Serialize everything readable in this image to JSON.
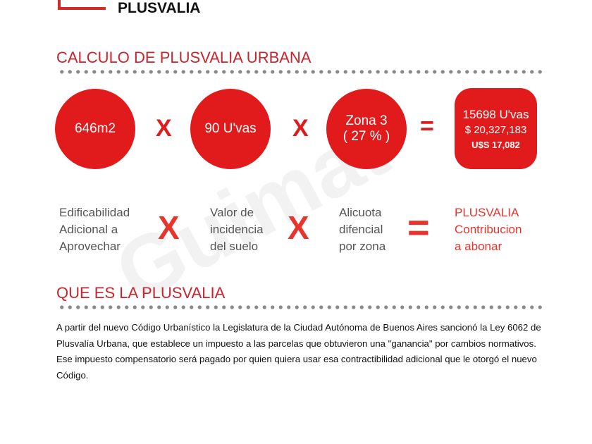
{
  "header": {
    "title": "PLUSVALIA"
  },
  "calc": {
    "heading": "CALCULO DE PLUSVALIA URBANA",
    "area": "646m2",
    "incidence": "90 U'vas",
    "zone_line1": "Zona 3",
    "zone_line2": "( 27 % )",
    "op_times": "X",
    "op_equals": "=",
    "result_uvas": "15698 U'vas",
    "result_pesos": "$ 20,327,183",
    "result_usd": "U$S 17,082"
  },
  "labels": {
    "area": [
      "Edificabilidad",
      "Adicional a",
      "Aprovechar"
    ],
    "incidence": [
      "Valor de",
      "incidencia",
      "del suelo"
    ],
    "zone": [
      "Alicuota",
      "difencial",
      "por zona"
    ],
    "result": [
      "PLUSVALIA",
      "Contribucion",
      "a abonar"
    ]
  },
  "watermark": "Guimat propiedades",
  "info": {
    "heading": "QUE ES LA PLUSVALIA",
    "text": "A partir del nuevo Código Urbanístico la Legislatura de la Ciudad Autónoma de Buenos Aires sancionó la Ley 6062 de Plusvalía Urbana, que establece un impuesto a las parcelas que obtuvieron una \"ganancia\" por cambios normativos. Ese impuesto compensatorio será pagado por quien quiera usar esa contractibilidad adicional que le otorgó el nuevo Código."
  },
  "colors": {
    "accent": "#e11b1b",
    "heading": "#c9252c"
  }
}
